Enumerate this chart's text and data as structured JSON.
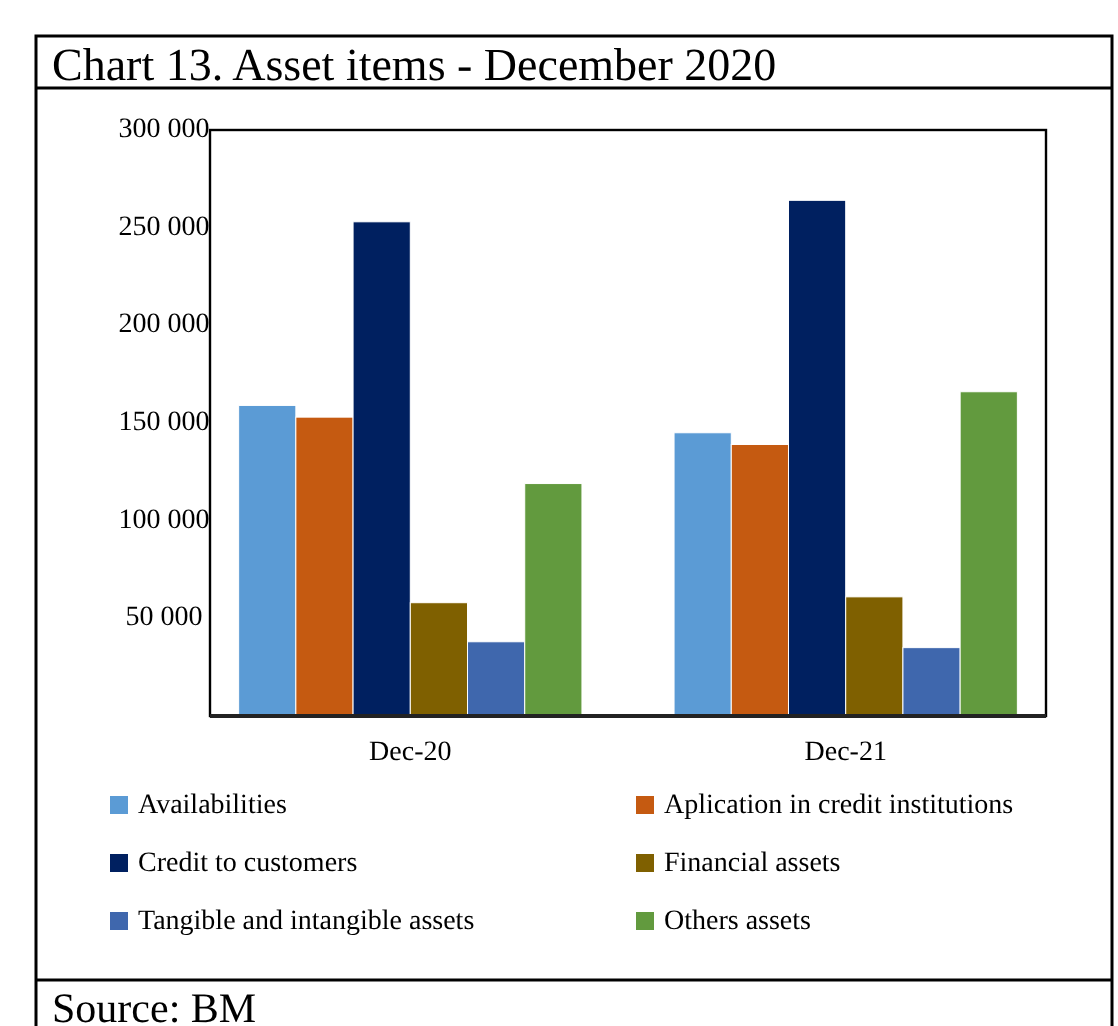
{
  "chart_data": {
    "type": "bar",
    "title": "Chart 13. Asset items - December 2020",
    "categories": [
      "Dec-20",
      "Dec-21"
    ],
    "series": [
      {
        "name": "Availabilities",
        "color": "#5b9bd5",
        "values": [
          159000,
          145000
        ]
      },
      {
        "name": "Aplication in credit institutions",
        "color": "#c55a11",
        "values": [
          153000,
          139000
        ]
      },
      {
        "name": "Credit to customers",
        "color": "#002060",
        "values": [
          253000,
          264000
        ]
      },
      {
        "name": "Financial assets",
        "color": "#7f6000",
        "values": [
          58000,
          61000
        ]
      },
      {
        "name": "Tangible and intangible assets",
        "color": "#3f67ad",
        "values": [
          38000,
          35000
        ]
      },
      {
        "name": "Others assets",
        "color": "#629a3e",
        "values": [
          119000,
          166000
        ]
      }
    ],
    "ylim": [
      0,
      300000
    ],
    "yticks": [
      {
        "value": 50000,
        "label": "50 000"
      },
      {
        "value": 100000,
        "label": "100 000"
      },
      {
        "value": 150000,
        "label": "150 000"
      },
      {
        "value": 200000,
        "label": "200 000"
      },
      {
        "value": 250000,
        "label": "250 000"
      },
      {
        "value": 300000,
        "label": "300 000"
      }
    ],
    "grid": false,
    "legend": "bottom",
    "annotations": [
      "Source: BM"
    ]
  }
}
